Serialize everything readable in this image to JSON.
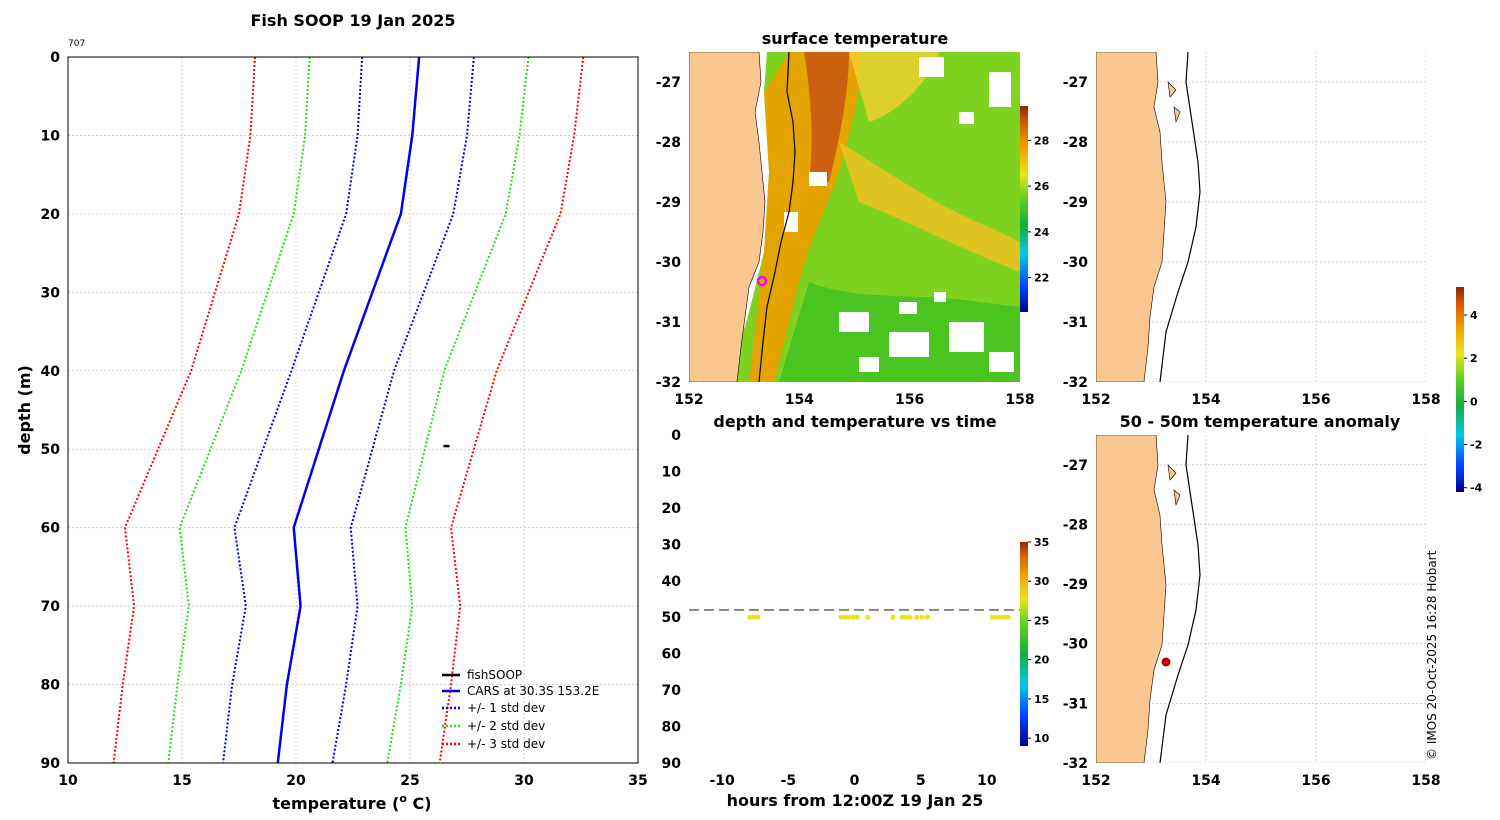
{
  "figure": {
    "main_title": "Fish SOOP 19 Jan 2025",
    "cast_id": "707",
    "copyright": "© IMOS 20-Oct-2025 16:28 Hobart"
  },
  "colors": {
    "cars": "#0000ee",
    "std1": "#0000ee",
    "std2": "#22dd22",
    "std3": "#ff0000",
    "fishsoop": "#000000",
    "land": "#f9c78f",
    "dashed": "#808080"
  },
  "chart_data": [
    {
      "id": "profile",
      "type": "line",
      "title": "Fish SOOP 19 Jan 2025",
      "xlabel": "temperature (o C)",
      "ylabel": "depth (m)",
      "xlim": [
        10,
        35
      ],
      "ylim": [
        0,
        90
      ],
      "y_reversed": true,
      "xticks": [
        10,
        15,
        20,
        25,
        30,
        35
      ],
      "yticks": [
        0,
        10,
        20,
        30,
        40,
        50,
        60,
        70,
        80,
        90
      ],
      "grid": true,
      "legend_position": "bottom-right",
      "depths": [
        0,
        10,
        20,
        40,
        60,
        70,
        80,
        90
      ],
      "series": [
        {
          "key": "cars",
          "name": "CARS at 30.3S 153.2E",
          "style": "solid",
          "values": [
            25.4,
            25.1,
            24.6,
            22.1,
            19.9,
            20.2,
            19.6,
            19.2
          ]
        },
        {
          "key": "std1",
          "name": "+/- 1 std dev",
          "style": "dotted",
          "values": [
            27.8,
            27.5,
            26.9,
            24.3,
            22.4,
            22.7,
            22.2,
            21.6
          ],
          "lower": [
            22.9,
            22.7,
            22.2,
            19.8,
            17.3,
            17.8,
            17.2,
            16.8
          ]
        },
        {
          "key": "std2",
          "name": "+/- 2 std dev",
          "style": "dotted",
          "values": [
            30.2,
            29.8,
            29.2,
            26.5,
            24.8,
            25.1,
            24.6,
            24.0
          ],
          "lower": [
            20.6,
            20.4,
            19.9,
            17.6,
            14.9,
            15.3,
            14.8,
            14.4
          ]
        },
        {
          "key": "std3",
          "name": "+/- 3 std dev",
          "style": "dotted",
          "values": [
            32.6,
            32.2,
            31.6,
            28.8,
            26.8,
            27.2,
            26.8,
            26.3
          ],
          "lower": [
            18.2,
            18.0,
            17.5,
            15.4,
            12.5,
            12.9,
            12.4,
            12.0
          ]
        }
      ],
      "fishsoop": {
        "name": "fishSOOP",
        "points": [
          {
            "x": 26.6,
            "y": 49.6
          }
        ]
      }
    },
    {
      "id": "surface_temperature",
      "type": "heatmap",
      "title": "surface temperature",
      "xlim": [
        152,
        158
      ],
      "ylim": [
        -32,
        -26.5
      ],
      "xticks": [
        152,
        154,
        156,
        158
      ],
      "yticks": [
        -27,
        -28,
        -29,
        -30,
        -31,
        -32
      ],
      "colorbar": {
        "min": 20.5,
        "max": 29.5,
        "ticks": [
          22,
          24,
          26,
          28
        ]
      },
      "marker": {
        "lon": 153.2,
        "lat": -30.3
      }
    },
    {
      "id": "empty_map",
      "type": "heatmap",
      "title": "",
      "xlim": [
        152,
        158
      ],
      "ylim": [
        -32,
        -26.5
      ],
      "xticks": [
        152,
        154,
        156,
        158
      ],
      "yticks": [
        -27,
        -28,
        -29,
        -30,
        -31,
        -32
      ],
      "grid": true
    },
    {
      "id": "depth_time",
      "type": "scatter",
      "title": "depth and temperature vs time",
      "xlabel": "hours from 12:00Z 19 Jan 25",
      "xlim": [
        -12.5,
        12.5
      ],
      "ylim": [
        0,
        90
      ],
      "y_reversed": true,
      "xticks": [
        -10,
        -5,
        0,
        5,
        10
      ],
      "yticks": [
        0,
        10,
        20,
        30,
        40,
        50,
        60,
        70,
        80,
        90
      ],
      "dashed_line_depth": 48,
      "point_color": "#e8e61c",
      "points_hours": [
        -7.9,
        -7.6,
        -7.3,
        -1.0,
        -0.7,
        -0.4,
        -0.1,
        0.2,
        1.0,
        2.9,
        3.6,
        3.9,
        4.2,
        4.7,
        5.1,
        5.5,
        10.4,
        10.7,
        11.0,
        11.3,
        11.6
      ],
      "points_depth": 50,
      "colorbar": {
        "min": 9,
        "max": 35,
        "ticks": [
          10,
          15,
          20,
          25,
          30,
          35
        ]
      }
    },
    {
      "id": "anomaly_map",
      "type": "heatmap",
      "title": "50 - 50m temperature anomaly",
      "xlim": [
        152,
        158
      ],
      "ylim": [
        -32,
        -26.5
      ],
      "xticks": [
        152,
        154,
        156,
        158
      ],
      "yticks": [
        -27,
        -28,
        -29,
        -30,
        -31,
        -32
      ],
      "grid": true,
      "marker": {
        "lon": 153.2,
        "lat": -30.3,
        "color": "#bb0000"
      },
      "colorbar": {
        "min": -4.2,
        "max": 5.3,
        "ticks": [
          -4,
          -2,
          0,
          2,
          4
        ]
      }
    }
  ]
}
